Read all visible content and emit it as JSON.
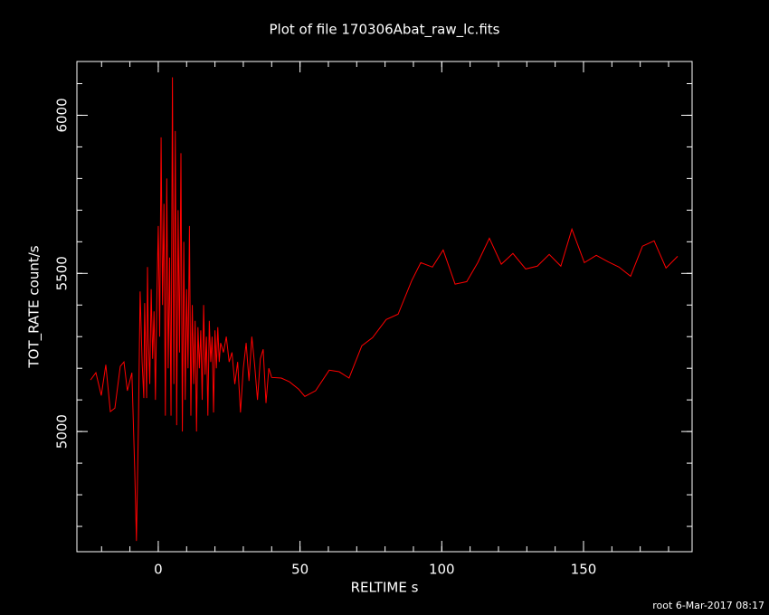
{
  "chart_data": {
    "type": "line",
    "title": "Plot of file 170306Abat_raw_lc.fits",
    "xlabel": "RELTIME  s",
    "ylabel": "TOT_RATE  count/s",
    "footer": "root  6-Mar-2017 08:17",
    "color": "#ff0000",
    "xlim": [
      -28.7,
      188.3
    ],
    "ylim": [
      4620,
      6170
    ],
    "xticks": [
      0,
      50,
      100,
      150
    ],
    "yticks": [
      5000,
      5500,
      6000
    ],
    "xminor_step": 10,
    "yminor_step": 100,
    "x": [
      -23.9,
      -22,
      -20.1,
      -18.5,
      -16.9,
      -15.3,
      -13.4,
      -12.1,
      -10.9,
      -9.3,
      -8.3,
      -7.7,
      -7,
      -6.4,
      -5.7,
      -5.1,
      -4.8,
      -4.1,
      -3.8,
      -3.5,
      -3,
      -2.5,
      -2,
      -1.5,
      -1,
      -0.5,
      0,
      0.5,
      1,
      1.5,
      2,
      2.5,
      3,
      3.5,
      4,
      4.5,
      5,
      5.5,
      6,
      6.5,
      7,
      7.5,
      8,
      8.5,
      9,
      9.5,
      10,
      10.5,
      11,
      11.5,
      12,
      12.5,
      13,
      13.5,
      14,
      14.5,
      15,
      15.5,
      16,
      16.5,
      17,
      17.5,
      18,
      18.5,
      19,
      19.5,
      20,
      20.5,
      21,
      21.5,
      22,
      23,
      24,
      25,
      26,
      27,
      28,
      29,
      30,
      31,
      32,
      33,
      34,
      35,
      36,
      37,
      38,
      39,
      40,
      43.4,
      46.3,
      49.5,
      51.7,
      55.5,
      60.3,
      63.8,
      67.3,
      71.8,
      75.6,
      80.4,
      84.6,
      89.4,
      92.6,
      96.7,
      100.5,
      104.7,
      108.8,
      112.7,
      116.8,
      121,
      125.1,
      129.6,
      133.7,
      137.9,
      142,
      145.9,
      150.3,
      154.5,
      158.6,
      162.5,
      166.6,
      170.8,
      174.9,
      179.1,
      183.2
    ],
    "values": [
      5163,
      5186,
      5114,
      5211,
      5063,
      5074,
      5206,
      5220,
      5129,
      5186,
      4877,
      4654,
      5020,
      5443,
      5220,
      5106,
      5406,
      5106,
      5520,
      5300,
      5150,
      5450,
      5230,
      5380,
      5100,
      5420,
      5650,
      5300,
      5930,
      5400,
      5720,
      5050,
      5800,
      5200,
      5550,
      5050,
      6120,
      5150,
      5950,
      5020,
      5700,
      5250,
      5880,
      5000,
      5600,
      5100,
      5450,
      5200,
      5650,
      5050,
      5400,
      5150,
      5350,
      5000,
      5330,
      5200,
      5320,
      5100,
      5400,
      5180,
      5300,
      5050,
      5350,
      5220,
      5300,
      5060,
      5320,
      5200,
      5330,
      5220,
      5280,
      5250,
      5300,
      5220,
      5250,
      5150,
      5220,
      5060,
      5200,
      5280,
      5160,
      5300,
      5210,
      5100,
      5230,
      5260,
      5090,
      5200,
      5171,
      5169,
      5157,
      5134,
      5111,
      5129,
      5194,
      5189,
      5169,
      5271,
      5297,
      5354,
      5371,
      5477,
      5534,
      5520,
      5574,
      5466,
      5474,
      5534,
      5611,
      5529,
      5563,
      5514,
      5523,
      5560,
      5523,
      5640,
      5534,
      5557,
      5537,
      5520,
      5491,
      5586,
      5603,
      5517,
      5554
    ]
  }
}
